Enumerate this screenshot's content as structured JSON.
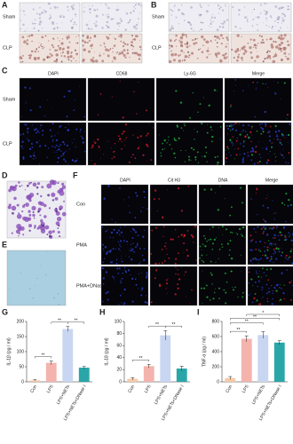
{
  "panels": {
    "A": {
      "letter": "A",
      "rows": [
        "Sham",
        "CLP"
      ]
    },
    "B": {
      "letter": "B",
      "rows": [
        "Sham",
        "CLP"
      ]
    },
    "C": {
      "letter": "C",
      "columns": [
        "DAPI",
        "CD68",
        "Ly-6G",
        "Merge"
      ],
      "rows": [
        "Sham",
        "CLP"
      ]
    },
    "D": {
      "letter": "D"
    },
    "E": {
      "letter": "E"
    },
    "F": {
      "letter": "F",
      "columns": [
        "DAPI",
        "Cit H3",
        "DNA",
        "Merge"
      ],
      "rows": [
        "Con",
        "PMA",
        "PMA+DNase I"
      ]
    }
  },
  "chart_data": [
    {
      "type": "bar",
      "letter": "G",
      "ylabel": "IL-1β (pg / ml)",
      "categories": [
        "Con",
        "LPS",
        "LPS+NETs",
        "LPS+NETs+DNase I"
      ],
      "values": [
        5,
        63,
        175,
        47
      ],
      "errors": [
        2,
        6,
        8,
        4
      ],
      "colors": [
        "#f7c9a8",
        "#f4b3ad",
        "#c9d6f2",
        "#2aa6a8"
      ],
      "ylim": [
        0,
        200
      ],
      "yticks": [
        0,
        50,
        100,
        150,
        200
      ],
      "annotations": [
        "**",
        "**",
        "**"
      ]
    },
    {
      "type": "bar",
      "letter": "H",
      "ylabel": "IL-18 (pg / ml)",
      "categories": [
        "Con",
        "LPS",
        "LPS+NETs",
        "LPS+NETs+DNase I"
      ],
      "values": [
        5,
        26,
        77,
        22
      ],
      "errors": [
        2,
        3,
        8,
        4
      ],
      "colors": [
        "#f7c9a8",
        "#f4b3ad",
        "#c9d6f2",
        "#2aa6a8"
      ],
      "ylim": [
        0,
        100
      ],
      "yticks": [
        0,
        20,
        40,
        60,
        80,
        100
      ],
      "annotations": [
        "**",
        "**",
        "**"
      ]
    },
    {
      "type": "bar",
      "letter": "I",
      "ylabel": "TNF-α (pg / ml)",
      "categories": [
        "Con",
        "LPS",
        "LPS+NETs",
        "LPS+NETs+DNase I"
      ],
      "values": [
        50,
        570,
        620,
        520
      ],
      "errors": [
        20,
        40,
        45,
        25
      ],
      "colors": [
        "#f7c9a8",
        "#f4b3ad",
        "#c9d6f2",
        "#2aa6a8"
      ],
      "ylim": [
        0,
        800
      ],
      "yticks": [
        0,
        200,
        400,
        600,
        800
      ],
      "annotations": [
        "**",
        "**",
        "**",
        "*"
      ]
    }
  ]
}
